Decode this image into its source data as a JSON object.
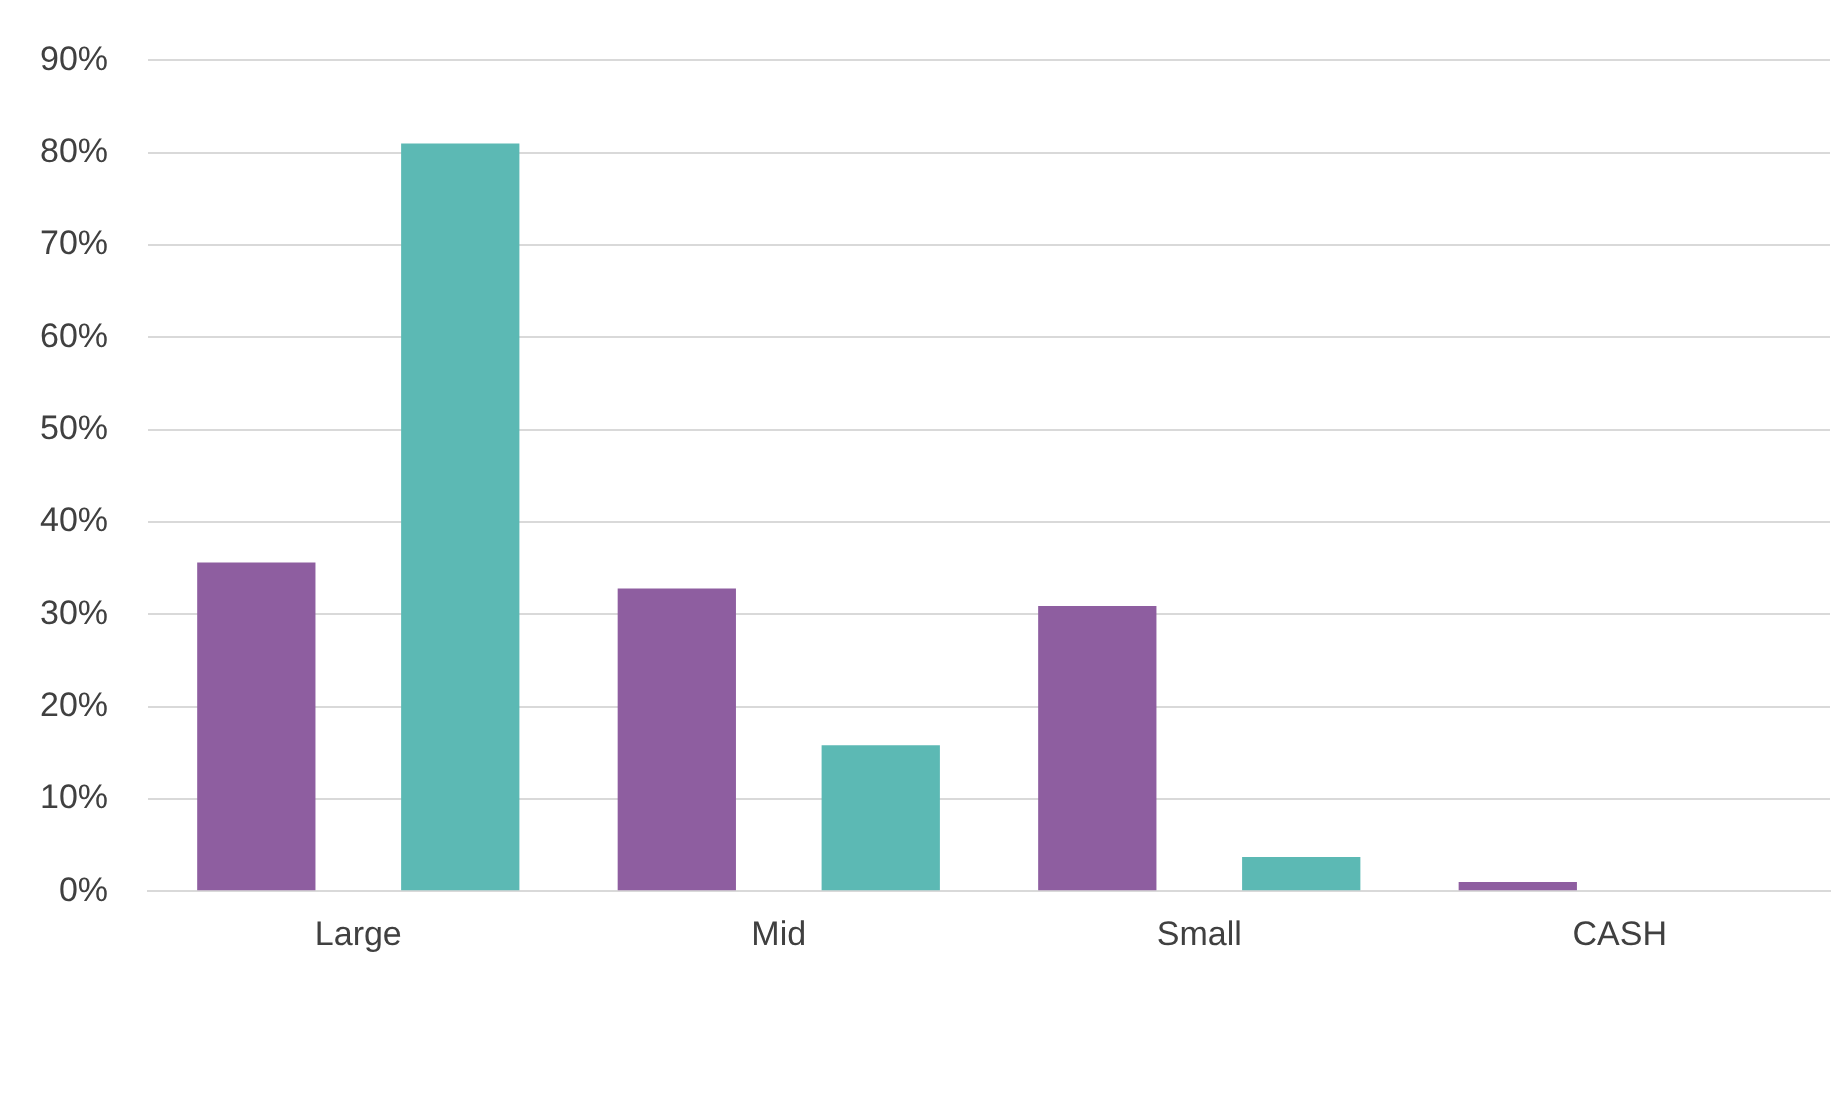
{
  "chart_data": {
    "type": "bar",
    "categories": [
      "Large",
      "Mid",
      "Small",
      "CASH"
    ],
    "series": [
      {
        "color": "#8e5ea0",
        "values": [
          35.6,
          32.8,
          30.9,
          1.0
        ]
      },
      {
        "color": "#5cb9b4",
        "values": [
          81,
          15.8,
          3.7,
          0
        ]
      }
    ],
    "ylim": [
      0,
      90
    ],
    "yticks": [
      {
        "value": 0,
        "label": "0%"
      },
      {
        "value": 10,
        "label": "10%"
      },
      {
        "value": 20,
        "label": "20%"
      },
      {
        "value": 30,
        "label": "30%"
      },
      {
        "value": 40,
        "label": "40%"
      },
      {
        "value": 50,
        "label": "50%"
      },
      {
        "value": 60,
        "label": "60%"
      },
      {
        "value": 70,
        "label": "70%"
      },
      {
        "value": 80,
        "label": "80%"
      },
      {
        "value": 90,
        "label": "90%"
      }
    ],
    "grid": "y",
    "legend": false
  }
}
